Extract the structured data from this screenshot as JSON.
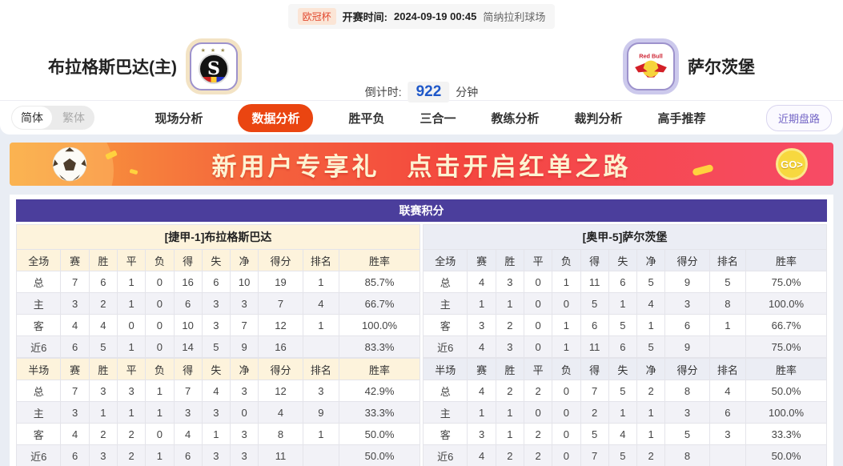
{
  "match_bar": {
    "league_badge": "欧冠杯",
    "kickoff_label": "开赛时间:",
    "kickoff_time": "2024-09-19 00:45",
    "venue": "简纳拉利球场"
  },
  "header": {
    "home_team": "布拉格斯巴达(主)",
    "away_team": "萨尔茨堡",
    "home_logo_letter": "S",
    "home_logo_stars": "★ ★ ★",
    "countdown_label": "倒计时:",
    "countdown_value": "922",
    "countdown_unit": "分钟"
  },
  "nav": {
    "lang_simplified": "简体",
    "lang_traditional": "繁体",
    "tabs": [
      {
        "label": "现场分析",
        "active": false
      },
      {
        "label": "数据分析",
        "active": true
      },
      {
        "label": "胜平负",
        "active": false
      },
      {
        "label": "三合一",
        "active": false
      },
      {
        "label": "教练分析",
        "active": false
      },
      {
        "label": "裁判分析",
        "active": false
      },
      {
        "label": "高手推荐",
        "active": false
      }
    ],
    "recent_trends_button": "近期盘路"
  },
  "banner": {
    "text_left": "新用户专享礼",
    "text_right": "点击开启红单之路",
    "go_label": "GO>"
  },
  "league_table": {
    "title": "联赛积分",
    "columns_full": [
      "全场",
      "赛",
      "胜",
      "平",
      "负",
      "得",
      "失",
      "净",
      "得分",
      "排名",
      "胜率"
    ],
    "columns_half": [
      "半场",
      "赛",
      "胜",
      "平",
      "负",
      "得",
      "失",
      "净",
      "得分",
      "排名",
      "胜率"
    ],
    "left": {
      "team_header": "[捷甲-1]布拉格斯巴达",
      "full_rows": [
        [
          "总",
          "7",
          "6",
          "1",
          "0",
          "16",
          "6",
          "10",
          "19",
          "1",
          "85.7%"
        ],
        [
          "主",
          "3",
          "2",
          "1",
          "0",
          "6",
          "3",
          "3",
          "7",
          "4",
          "66.7%"
        ],
        [
          "客",
          "4",
          "4",
          "0",
          "0",
          "10",
          "3",
          "7",
          "12",
          "1",
          "100.0%"
        ],
        [
          "近6",
          "6",
          "5",
          "1",
          "0",
          "14",
          "5",
          "9",
          "16",
          "",
          "83.3%"
        ]
      ],
      "half_rows": [
        [
          "总",
          "7",
          "3",
          "3",
          "1",
          "7",
          "4",
          "3",
          "12",
          "3",
          "42.9%"
        ],
        [
          "主",
          "3",
          "1",
          "1",
          "1",
          "3",
          "3",
          "0",
          "4",
          "9",
          "33.3%"
        ],
        [
          "客",
          "4",
          "2",
          "2",
          "0",
          "4",
          "1",
          "3",
          "8",
          "1",
          "50.0%"
        ],
        [
          "近6",
          "6",
          "3",
          "2",
          "1",
          "6",
          "3",
          "3",
          "11",
          "",
          "50.0%"
        ]
      ]
    },
    "right": {
      "team_header": "[奥甲-5]萨尔茨堡",
      "full_rows": [
        [
          "总",
          "4",
          "3",
          "0",
          "1",
          "11",
          "6",
          "5",
          "9",
          "5",
          "75.0%"
        ],
        [
          "主",
          "1",
          "1",
          "0",
          "0",
          "5",
          "1",
          "4",
          "3",
          "8",
          "100.0%"
        ],
        [
          "客",
          "3",
          "2",
          "0",
          "1",
          "6",
          "5",
          "1",
          "6",
          "1",
          "66.7%"
        ],
        [
          "近6",
          "4",
          "3",
          "0",
          "1",
          "11",
          "6",
          "5",
          "9",
          "",
          "75.0%"
        ]
      ],
      "half_rows": [
        [
          "总",
          "4",
          "2",
          "2",
          "0",
          "7",
          "5",
          "2",
          "8",
          "4",
          "50.0%"
        ],
        [
          "主",
          "1",
          "1",
          "0",
          "0",
          "2",
          "1",
          "1",
          "3",
          "6",
          "100.0%"
        ],
        [
          "客",
          "3",
          "1",
          "2",
          "0",
          "5",
          "4",
          "1",
          "5",
          "3",
          "33.3%"
        ],
        [
          "近6",
          "4",
          "2",
          "2",
          "0",
          "7",
          "5",
          "2",
          "8",
          "",
          "50.0%"
        ]
      ]
    }
  },
  "colors": {
    "accent_tab": "#ea4511",
    "table_title_bg": "#4b3e9c",
    "home_row_label": "#d42a21",
    "away_row_label": "#2435c8",
    "countdown_value": "#1f58c9",
    "left_header_bg": "#fdf3dc",
    "right_header_bg": "#ebedf4"
  }
}
